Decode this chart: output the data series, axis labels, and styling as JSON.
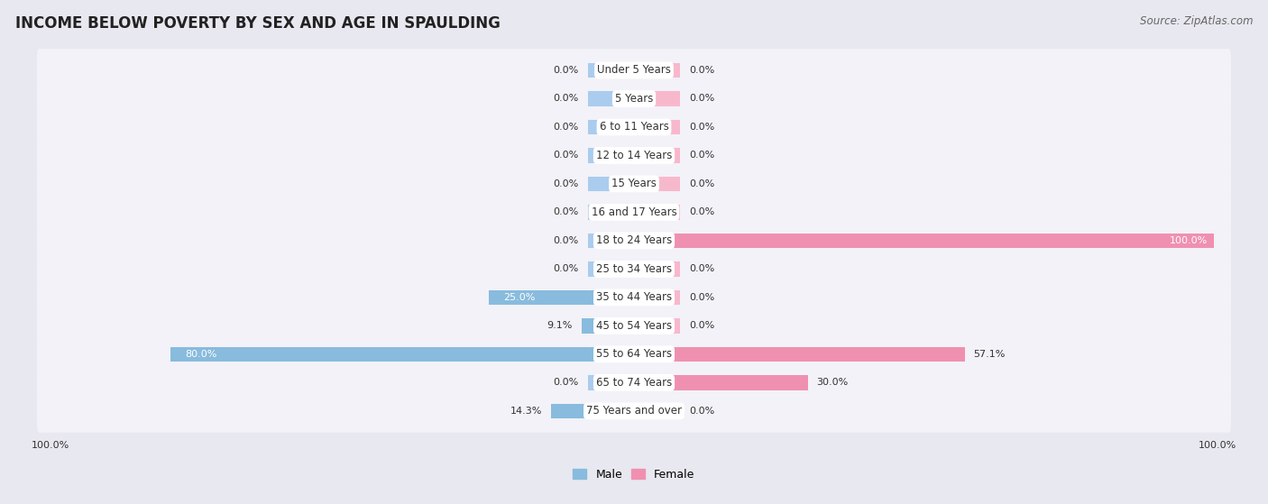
{
  "title": "INCOME BELOW POVERTY BY SEX AND AGE IN SPAULDING",
  "source": "Source: ZipAtlas.com",
  "categories": [
    "Under 5 Years",
    "5 Years",
    "6 to 11 Years",
    "12 to 14 Years",
    "15 Years",
    "16 and 17 Years",
    "18 to 24 Years",
    "25 to 34 Years",
    "35 to 44 Years",
    "45 to 54 Years",
    "55 to 64 Years",
    "65 to 74 Years",
    "75 Years and over"
  ],
  "male": [
    0.0,
    0.0,
    0.0,
    0.0,
    0.0,
    0.0,
    0.0,
    0.0,
    25.0,
    9.1,
    80.0,
    0.0,
    14.3
  ],
  "female": [
    0.0,
    0.0,
    0.0,
    0.0,
    0.0,
    0.0,
    100.0,
    0.0,
    0.0,
    0.0,
    57.1,
    30.0,
    0.0
  ],
  "male_color": "#88bbdd",
  "female_color": "#f090b0",
  "male_color_light": "#aaccee",
  "female_color_light": "#f8b8cc",
  "background_color": "#e8e8f0",
  "row_bg_color": "#f2f2f8",
  "title_fontsize": 12,
  "source_fontsize": 8.5,
  "label_fontsize": 8,
  "category_fontsize": 8.5,
  "max_value": 100.0,
  "legend_male": "Male",
  "legend_female": "Female",
  "stub_value": 8.0
}
